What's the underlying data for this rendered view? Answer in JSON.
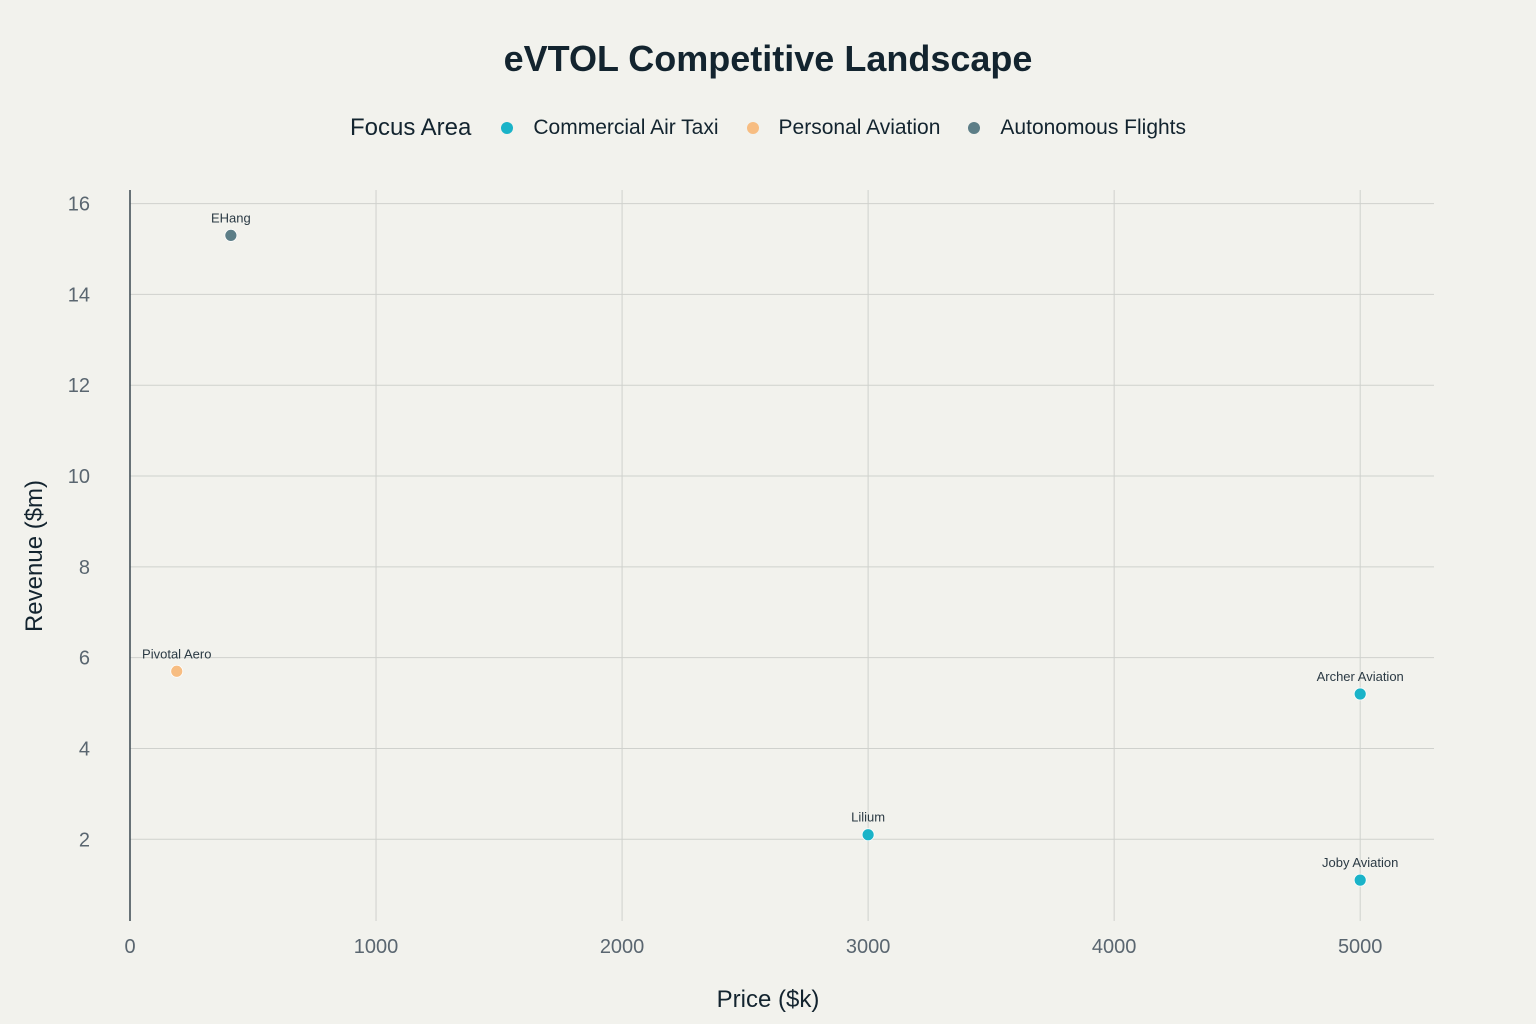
{
  "chart_data": {
    "type": "scatter",
    "title": "eVTOL Competitive Landscape",
    "xlabel": "Price ($k)",
    "ylabel": "Revenue ($m)",
    "xlim": [
      0,
      5300
    ],
    "ylim": [
      0.2,
      16.3
    ],
    "x_ticks": [
      0,
      1000,
      2000,
      3000,
      4000,
      5000
    ],
    "y_ticks": [
      2,
      4,
      6,
      8,
      10,
      12,
      14,
      16
    ],
    "grid": true,
    "legend": {
      "title": "Focus Area",
      "placement": "top-center",
      "entries": [
        {
          "name": "Commercial Air Taxi",
          "color": "#1ab3c8"
        },
        {
          "name": "Personal Aviation",
          "color": "#f7bd82"
        },
        {
          "name": "Autonomous Flights",
          "color": "#5d7e87"
        }
      ]
    },
    "series": [
      {
        "name": "Commercial Air Taxi",
        "color": "#1ab3c8",
        "points": [
          {
            "label": "Lilium",
            "x": 3000,
            "y": 2.1
          },
          {
            "label": "Archer Aviation",
            "x": 5000,
            "y": 5.2
          },
          {
            "label": "Joby Aviation",
            "x": 5000,
            "y": 1.1
          }
        ]
      },
      {
        "name": "Personal Aviation",
        "color": "#f7bd82",
        "points": [
          {
            "label": "Pivotal Aero",
            "x": 190,
            "y": 5.7
          }
        ]
      },
      {
        "name": "Autonomous Flights",
        "color": "#5d7e87",
        "points": [
          {
            "label": "EHang",
            "x": 410,
            "y": 15.3
          }
        ]
      }
    ]
  }
}
